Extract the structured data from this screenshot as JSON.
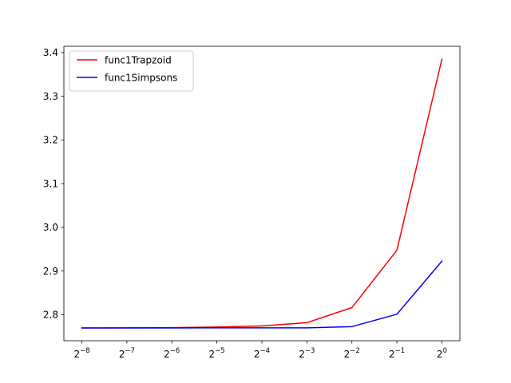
{
  "chart_data": {
    "type": "line",
    "title": "",
    "xlabel": "",
    "ylabel": "",
    "x_scale": "log2",
    "x": [
      0.00390625,
      0.0078125,
      0.015625,
      0.03125,
      0.0625,
      0.125,
      0.25,
      0.5,
      1
    ],
    "x_tick_labels": [
      {
        "base": "2",
        "exp": "−8"
      },
      {
        "base": "2",
        "exp": "−7"
      },
      {
        "base": "2",
        "exp": "−6"
      },
      {
        "base": "2",
        "exp": "−5"
      },
      {
        "base": "2",
        "exp": "−4"
      },
      {
        "base": "2",
        "exp": "−3"
      },
      {
        "base": "2",
        "exp": "−2"
      },
      {
        "base": "2",
        "exp": "−1"
      },
      {
        "base": "2",
        "exp": "0"
      }
    ],
    "ylim": [
      2.7405,
      3.4145
    ],
    "y_ticks": [
      2.8,
      2.9,
      3.0,
      3.1,
      3.2,
      3.3,
      3.4
    ],
    "y_tick_labels": [
      "2.8",
      "2.9",
      "3.0",
      "3.1",
      "3.2",
      "3.3",
      "3.4"
    ],
    "grid": false,
    "legend_position": "upper-left",
    "series": [
      {
        "name": "func1Trapzoid",
        "color": "#ff0000",
        "values": [
          2.7697,
          2.7699,
          2.7704,
          2.7718,
          2.7742,
          2.7818,
          2.8163,
          2.9477,
          3.385
        ]
      },
      {
        "name": "func1Simpsons",
        "color": "#0000ff",
        "values": [
          2.7697,
          2.7697,
          2.7697,
          2.7699,
          2.7699,
          2.77,
          2.7728,
          2.8011,
          2.9225
        ]
      }
    ]
  }
}
